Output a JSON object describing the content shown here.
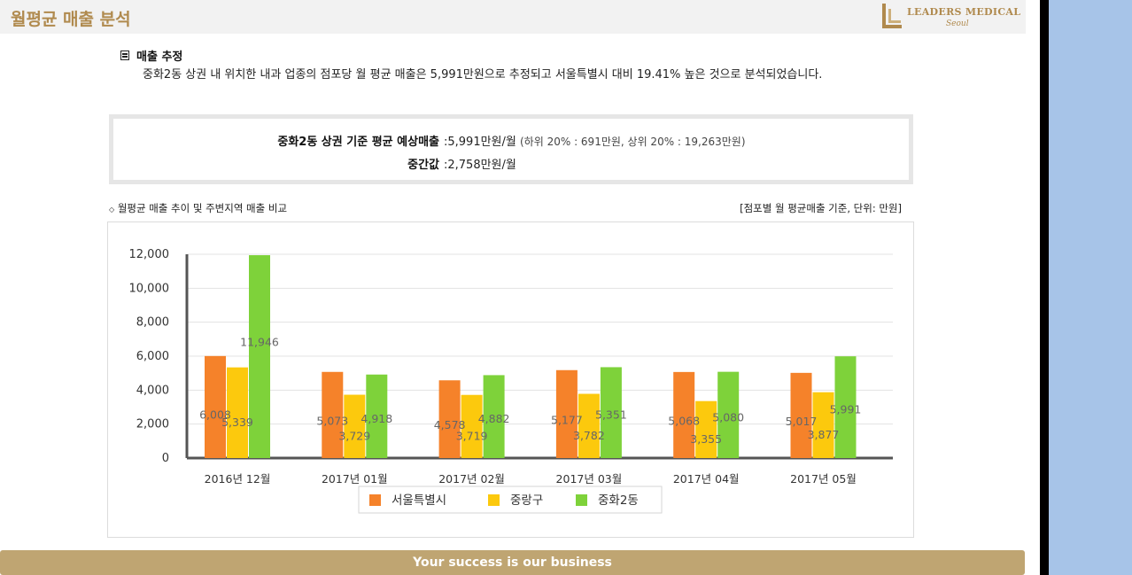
{
  "header": {
    "title": "월평균 매출 분석",
    "logo_text": "LEADERS MEDICAL",
    "logo_sub": "Seoul"
  },
  "section": {
    "heading": "매출 추정",
    "description": "중화2동 상권 내 위치한 내과 업종의 점포당 월 평균 매출은 5,991만원으로 추정되고 서울특별시 대비 19.41% 높은 것으로 분석되었습니다."
  },
  "summary": {
    "avg_label": "중화2동 상권 기준 평균 예상매출",
    "avg_value": ":5,991만원/월",
    "avg_note": "(하위 20% : 691만원, 상위 20% : 19,263만원)",
    "median_label": "중간값",
    "median_value": ":2,758만원/월"
  },
  "chart_caption": "월평균 매출 추이 및 주변지역 매출 비교",
  "chart_unit": "[점포별 월 평균매출 기준, 단위: 만원]",
  "footer": {
    "text": "Your success is our business"
  },
  "colors": {
    "seoul": "#f5822a",
    "jungnang": "#fcc90d",
    "junghwa": "#7ed23a",
    "brand": "#b08a4e",
    "footer": "#bfa572"
  },
  "chart_data": {
    "type": "bar",
    "categories": [
      "2016년 12월",
      "2017년 01월",
      "2017년 02월",
      "2017년 03월",
      "2017년 04월",
      "2017년 05월"
    ],
    "series": [
      {
        "name": "서울특별시",
        "values": [
          6008,
          5073,
          4578,
          5177,
          5068,
          5017
        ]
      },
      {
        "name": "중랑구",
        "values": [
          5339,
          3729,
          3719,
          3782,
          3355,
          3877
        ]
      },
      {
        "name": "중화2동",
        "values": [
          11946,
          4918,
          4882,
          5351,
          5080,
          5991
        ]
      }
    ],
    "ylim": [
      0,
      12000
    ],
    "yticks": [
      0,
      2000,
      4000,
      6000,
      8000,
      10000,
      12000
    ],
    "grid": true,
    "legend": "bottom"
  }
}
